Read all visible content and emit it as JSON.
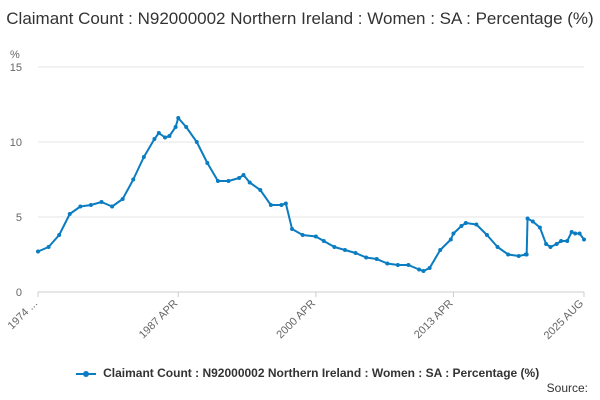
{
  "chart_data": {
    "type": "line",
    "title": "Claimant Count : N92000002 Northern Ireland : Women : SA : Percentage (%)",
    "ylabel": "%",
    "ylim": [
      0,
      15
    ],
    "yticks": [
      "0",
      "5",
      "10",
      "15"
    ],
    "xticks": [
      "1974 ...",
      "1987 APR",
      "2000 APR",
      "2013 APR",
      "2025 AUG"
    ],
    "grid": "horizontal",
    "legend_position": "bottom",
    "series": [
      {
        "name": "Claimant Count : N92000002 Northern Ireland : Women : SA : Percentage (%)",
        "color": "#0a7cc1",
        "points": [
          [
            "1974-01",
            2.7
          ],
          [
            "1975-01",
            3.0
          ],
          [
            "1976-01",
            3.8
          ],
          [
            "1977-01",
            5.2
          ],
          [
            "1978-01",
            5.7
          ],
          [
            "1979-01",
            5.8
          ],
          [
            "1980-01",
            6.0
          ],
          [
            "1981-01",
            5.7
          ],
          [
            "1982-01",
            6.2
          ],
          [
            "1983-01",
            7.5
          ],
          [
            "1984-01",
            9.0
          ],
          [
            "1985-01",
            10.2
          ],
          [
            "1985-06",
            10.6
          ],
          [
            "1986-01",
            10.3
          ],
          [
            "1986-06",
            10.4
          ],
          [
            "1987-01",
            11.0
          ],
          [
            "1987-04",
            11.6
          ],
          [
            "1988-01",
            11.0
          ],
          [
            "1989-01",
            10.0
          ],
          [
            "1990-01",
            8.6
          ],
          [
            "1991-01",
            7.4
          ],
          [
            "1992-01",
            7.4
          ],
          [
            "1993-01",
            7.6
          ],
          [
            "1993-06",
            7.8
          ],
          [
            "1994-01",
            7.3
          ],
          [
            "1995-01",
            6.8
          ],
          [
            "1996-01",
            5.8
          ],
          [
            "1997-01",
            5.8
          ],
          [
            "1997-06",
            5.9
          ],
          [
            "1998-01",
            4.2
          ],
          [
            "1999-01",
            3.8
          ],
          [
            "2000-04",
            3.7
          ],
          [
            "2001-01",
            3.4
          ],
          [
            "2002-01",
            3.0
          ],
          [
            "2003-01",
            2.8
          ],
          [
            "2004-01",
            2.6
          ],
          [
            "2005-01",
            2.3
          ],
          [
            "2006-01",
            2.2
          ],
          [
            "2007-01",
            1.9
          ],
          [
            "2008-01",
            1.8
          ],
          [
            "2009-01",
            1.8
          ],
          [
            "2010-01",
            1.5
          ],
          [
            "2010-06",
            1.4
          ],
          [
            "2011-01",
            1.6
          ],
          [
            "2012-01",
            2.8
          ],
          [
            "2013-01",
            3.5
          ],
          [
            "2013-04",
            3.9
          ],
          [
            "2014-01",
            4.4
          ],
          [
            "2014-06",
            4.6
          ],
          [
            "2015-06",
            4.5
          ],
          [
            "2016-06",
            3.8
          ],
          [
            "2017-06",
            3.0
          ],
          [
            "2018-06",
            2.5
          ],
          [
            "2019-06",
            2.4
          ],
          [
            "2020-02",
            2.5
          ],
          [
            "2020-03",
            2.5
          ],
          [
            "2020-04",
            4.9
          ],
          [
            "2020-10",
            4.7
          ],
          [
            "2021-06",
            4.3
          ],
          [
            "2022-01",
            3.2
          ],
          [
            "2022-06",
            3.0
          ],
          [
            "2023-01",
            3.2
          ],
          [
            "2023-06",
            3.4
          ],
          [
            "2024-01",
            3.4
          ],
          [
            "2024-06",
            4.0
          ],
          [
            "2024-10",
            3.9
          ],
          [
            "2025-03",
            3.9
          ],
          [
            "2025-08",
            3.5
          ]
        ]
      }
    ]
  },
  "legend_label": "Claimant Count : N92000002 Northern Ireland : Women : SA : Percentage (%)",
  "source_label": "Source:"
}
